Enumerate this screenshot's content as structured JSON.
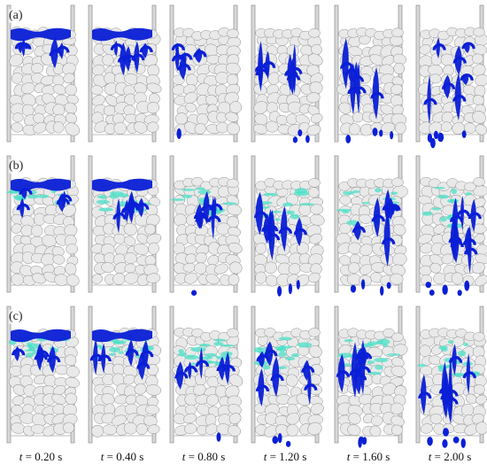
{
  "rows": [
    {
      "label": "(a)",
      "cyan": 0.0
    },
    {
      "label": "(b)",
      "cyan": 0.6
    },
    {
      "label": "(c)",
      "cyan": 1.0
    }
  ],
  "columns": [
    {
      "t_var": "t",
      "t_text": " = 0.20 s",
      "progress": 0.1
    },
    {
      "t_var": "t",
      "t_text": " = 0.40 s",
      "progress": 0.25
    },
    {
      "t_var": "t",
      "t_text": " = 0.80 s",
      "progress": 0.45
    },
    {
      "t_var": "t",
      "t_text": " = 1.20 s",
      "progress": 0.62
    },
    {
      "t_var": "t",
      "t_text": " = 1.60 s",
      "progress": 0.78
    },
    {
      "t_var": "t",
      "t_text": " = 2.00 s",
      "progress": 0.92
    }
  ],
  "colors": {
    "fluid": "#0a1fd6",
    "fluid_light": "#49e0c7",
    "particle_fill": "#e9e9e9",
    "particle_stroke": "#8a8a8a",
    "wall": "#9a9a9a"
  }
}
